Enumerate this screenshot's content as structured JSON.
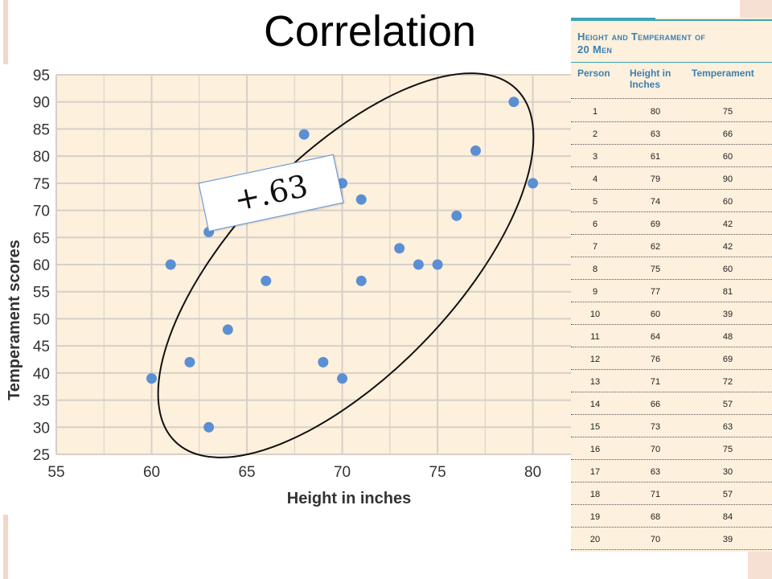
{
  "slide_title": "Correlation",
  "correlation_label": "+.63",
  "chart_data": {
    "type": "scatter",
    "xlabel": "Height in inches",
    "ylabel": "Temperament  scores",
    "xlim": [
      55,
      82
    ],
    "ylim": [
      25,
      95
    ],
    "x_ticks": [
      55,
      60,
      65,
      70,
      75,
      80
    ],
    "y_ticks": [
      25,
      30,
      35,
      40,
      45,
      50,
      55,
      60,
      65,
      70,
      75,
      80,
      85,
      90,
      95
    ],
    "grid": true,
    "points": [
      {
        "x": 80,
        "y": 75
      },
      {
        "x": 63,
        "y": 66
      },
      {
        "x": 61,
        "y": 60
      },
      {
        "x": 79,
        "y": 90
      },
      {
        "x": 74,
        "y": 60
      },
      {
        "x": 69,
        "y": 42
      },
      {
        "x": 62,
        "y": 42
      },
      {
        "x": 75,
        "y": 60
      },
      {
        "x": 77,
        "y": 81
      },
      {
        "x": 60,
        "y": 39
      },
      {
        "x": 64,
        "y": 48
      },
      {
        "x": 76,
        "y": 69
      },
      {
        "x": 71,
        "y": 72
      },
      {
        "x": 66,
        "y": 57
      },
      {
        "x": 73,
        "y": 63
      },
      {
        "x": 70,
        "y": 75
      },
      {
        "x": 63,
        "y": 30
      },
      {
        "x": 71,
        "y": 57
      },
      {
        "x": 68,
        "y": 84
      },
      {
        "x": 70,
        "y": 39
      }
    ],
    "colors": {
      "plot_bg": "#fdf0dc",
      "grid": "#d6d0c8",
      "point": "#5b8fd4"
    }
  },
  "table": {
    "title_line1": "Height and Temperament of",
    "title_line2": "20 Men",
    "headers": {
      "person": "Person",
      "height_l1": "Height in",
      "height_l2": "Inches",
      "temperament": "Temperament"
    },
    "rows": [
      [
        "1",
        "80",
        "75"
      ],
      [
        "2",
        "63",
        "66"
      ],
      [
        "3",
        "61",
        "60"
      ],
      [
        "4",
        "79",
        "90"
      ],
      [
        "5",
        "74",
        "60"
      ],
      [
        "6",
        "69",
        "42"
      ],
      [
        "7",
        "62",
        "42"
      ],
      [
        "8",
        "75",
        "60"
      ],
      [
        "9",
        "77",
        "81"
      ],
      [
        "10",
        "60",
        "39"
      ],
      [
        "11",
        "64",
        "48"
      ],
      [
        "12",
        "76",
        "69"
      ],
      [
        "13",
        "71",
        "72"
      ],
      [
        "14",
        "66",
        "57"
      ],
      [
        "15",
        "73",
        "63"
      ],
      [
        "16",
        "70",
        "75"
      ],
      [
        "17",
        "63",
        "30"
      ],
      [
        "18",
        "71",
        "57"
      ],
      [
        "19",
        "68",
        "84"
      ],
      [
        "20",
        "70",
        "39"
      ]
    ]
  }
}
